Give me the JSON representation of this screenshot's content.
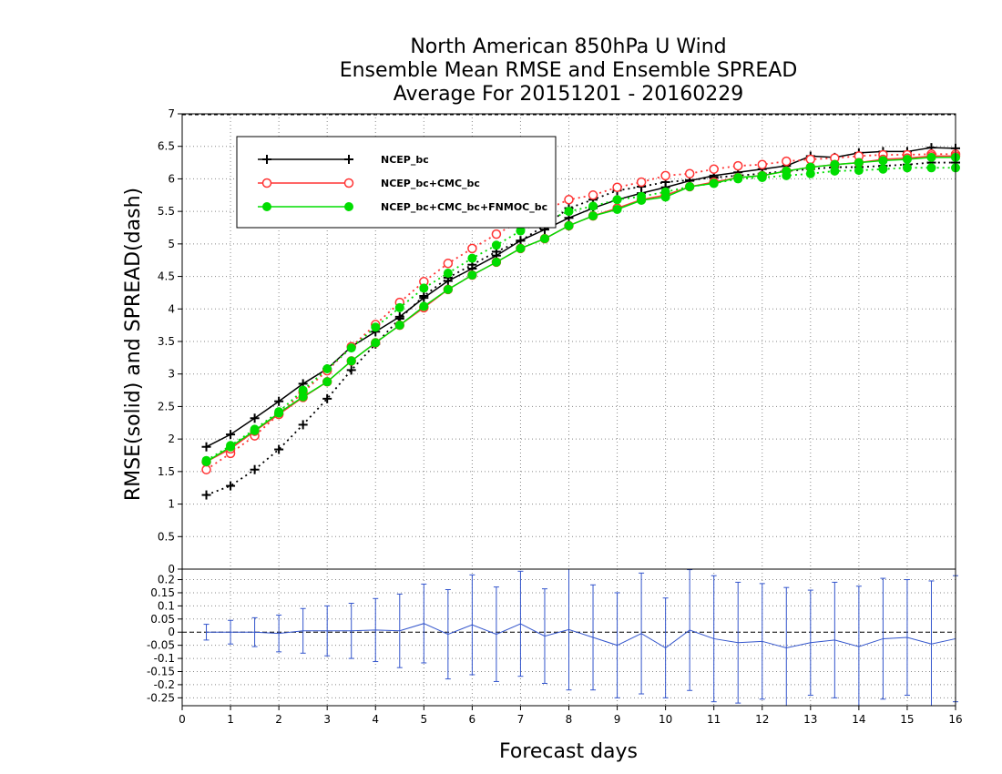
{
  "chart_data": {
    "type": "line",
    "title": [
      "North American 850hPa U Wind",
      "Ensemble Mean RMSE and Ensemble SPREAD",
      "Average For 20151201 - 20160229"
    ],
    "xlabel": "Forecast days",
    "ylabel": "RMSE(solid) and SPREAD(dash)",
    "xlim": [
      0,
      16
    ],
    "ylim": [
      0,
      7
    ],
    "x_ticks": [
      "0",
      "1",
      "2",
      "3",
      "4",
      "5",
      "6",
      "7",
      "8",
      "9",
      "10",
      "11",
      "12",
      "13",
      "14",
      "15",
      "16"
    ],
    "y_ticks": [
      "0",
      "0.5",
      "1",
      "1.5",
      "2",
      "2.5",
      "3",
      "3.5",
      "4",
      "4.5",
      "5",
      "5.5",
      "6",
      "6.5",
      "7"
    ],
    "legend_position": "top-left",
    "grid": true,
    "x": [
      0.5,
      1,
      1.5,
      2,
      2.5,
      3,
      3.5,
      4,
      4.5,
      5,
      5.5,
      6,
      6.5,
      7,
      7.5,
      8,
      8.5,
      9,
      9.5,
      10,
      10.5,
      11,
      11.5,
      12,
      12.5,
      13,
      13.5,
      14,
      14.5,
      15,
      15.5,
      16
    ],
    "series": [
      {
        "name": "NCEP_bc",
        "color": "#000000",
        "marker": "plus",
        "rmse": [
          1.88,
          2.07,
          2.32,
          2.58,
          2.85,
          3.08,
          3.42,
          3.65,
          3.88,
          4.17,
          4.43,
          4.62,
          4.82,
          5.05,
          5.22,
          5.4,
          5.55,
          5.68,
          5.78,
          5.87,
          5.97,
          6.05,
          6.1,
          6.15,
          6.2,
          6.35,
          6.33,
          6.4,
          6.42,
          6.42,
          6.48,
          6.47
        ],
        "spread": [
          1.14,
          1.28,
          1.53,
          1.84,
          2.22,
          2.62,
          3.06,
          3.46,
          3.85,
          4.2,
          4.48,
          4.68,
          4.88,
          5.05,
          5.28,
          5.55,
          5.68,
          5.82,
          5.88,
          5.95,
          5.98,
          6.02,
          6.05,
          6.08,
          6.12,
          6.15,
          6.18,
          6.18,
          6.2,
          6.22,
          6.25,
          6.25
        ]
      },
      {
        "name": "NCEP_bc+CMC_bc",
        "color": "#ff3333",
        "marker": "circle",
        "rmse": [
          1.65,
          1.85,
          2.12,
          2.38,
          2.64,
          2.88,
          3.2,
          3.48,
          3.75,
          4.02,
          4.3,
          4.52,
          4.72,
          4.93,
          5.08,
          5.28,
          5.43,
          5.55,
          5.68,
          5.75,
          5.88,
          5.95,
          6.02,
          6.05,
          6.12,
          6.18,
          6.22,
          6.25,
          6.3,
          6.32,
          6.35,
          6.35
        ],
        "spread": [
          1.53,
          1.78,
          2.05,
          2.38,
          2.72,
          3.05,
          3.42,
          3.76,
          4.1,
          4.42,
          4.7,
          4.93,
          5.15,
          5.35,
          5.52,
          5.68,
          5.75,
          5.87,
          5.95,
          6.05,
          6.08,
          6.15,
          6.2,
          6.22,
          6.27,
          6.3,
          6.32,
          6.35,
          6.37,
          6.37,
          6.38,
          6.38
        ]
      },
      {
        "name": "NCEP_bc+CMC_bc+FNMOC_bc",
        "color": "#00dd00",
        "marker": "dot",
        "rmse": [
          1.65,
          1.88,
          2.13,
          2.4,
          2.65,
          2.88,
          3.2,
          3.48,
          3.75,
          4.04,
          4.3,
          4.52,
          4.72,
          4.93,
          5.08,
          5.28,
          5.43,
          5.53,
          5.67,
          5.72,
          5.88,
          5.93,
          6.02,
          6.05,
          6.12,
          6.18,
          6.22,
          6.25,
          6.28,
          6.3,
          6.33,
          6.33
        ],
        "spread": [
          1.67,
          1.9,
          2.15,
          2.42,
          2.75,
          3.08,
          3.4,
          3.72,
          4.02,
          4.32,
          4.55,
          4.78,
          4.98,
          5.2,
          5.35,
          5.5,
          5.58,
          5.68,
          5.73,
          5.8,
          5.88,
          5.93,
          6.0,
          6.02,
          6.05,
          6.08,
          6.12,
          6.13,
          6.15,
          6.17,
          6.17,
          6.17
        ]
      }
    ],
    "difference_panel": {
      "ylim": [
        -0.28,
        0.24
      ],
      "y_ticks": [
        "-0.25",
        "-0.2",
        "-0.15",
        "-0.1",
        "-0.05",
        "0",
        "0.05",
        "0.1",
        "0.15",
        "0.2"
      ],
      "color": "#3355cc",
      "mean": [
        0.0,
        0.0,
        0.0,
        -0.005,
        0.005,
        0.005,
        0.005,
        0.008,
        0.005,
        0.033,
        -0.008,
        0.028,
        -0.008,
        0.032,
        -0.015,
        0.01,
        -0.02,
        -0.05,
        -0.005,
        -0.06,
        0.008,
        -0.025,
        -0.04,
        -0.035,
        -0.06,
        -0.04,
        -0.03,
        -0.055,
        -0.025,
        -0.02,
        -0.045,
        -0.025
      ],
      "error": [
        0.03,
        0.045,
        0.055,
        0.07,
        0.085,
        0.095,
        0.105,
        0.12,
        0.14,
        0.15,
        0.17,
        0.19,
        0.18,
        0.2,
        0.18,
        0.23,
        0.2,
        0.2,
        0.23,
        0.19,
        0.23,
        0.24,
        0.23,
        0.22,
        0.23,
        0.2,
        0.22,
        0.23,
        0.23,
        0.22,
        0.24,
        0.24
      ]
    }
  }
}
